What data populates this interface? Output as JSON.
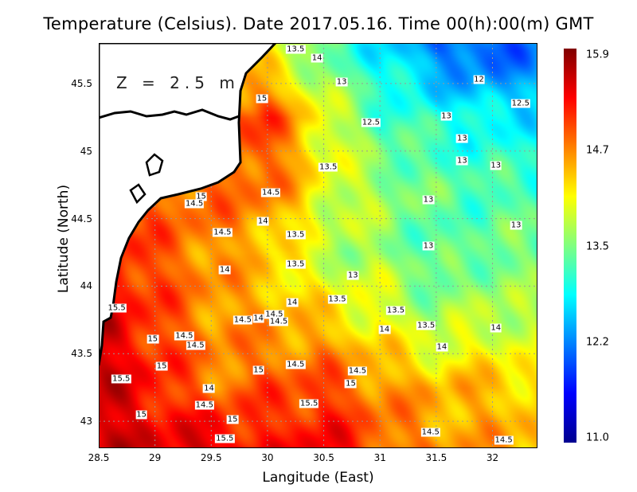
{
  "chart_data": {
    "type": "heatmap",
    "title": "Temperature (Celsius). Date 2017.05.16. Time 00(h):00(m)  GMT",
    "annotation": "Z = 2.5 m",
    "xlabel": "Langitude (East)",
    "ylabel": "Latitude (North)",
    "xlim": [
      28.5,
      32.4
    ],
    "ylim": [
      42.8,
      45.8
    ],
    "xticks": [
      "28.5",
      "29",
      "29.5",
      "30",
      "30.5",
      "31",
      "31.5",
      "32"
    ],
    "yticks": [
      "43",
      "43.5",
      "44",
      "44.5",
      "45",
      "45.5"
    ],
    "grid": true,
    "colorbar": {
      "min": 11.0,
      "max": 15.9,
      "labels": [
        "15.9",
        "14.7",
        "13.5",
        "12.2",
        "11.0"
      ],
      "colormap": "jet"
    },
    "grid_lon": [
      28.5,
      29.0,
      29.5,
      30.0,
      30.5,
      31.0,
      31.5,
      32.0,
      32.5
    ],
    "grid_lat": [
      45.75,
      45.25,
      44.75,
      44.25,
      43.75,
      43.25,
      42.75
    ],
    "values": [
      [
        null,
        null,
        null,
        14.0,
        13.3,
        12.8,
        12.2,
        12.0,
        12.3
      ],
      [
        null,
        null,
        null,
        15.0,
        14.0,
        13.2,
        13.0,
        12.8,
        12.8
      ],
      [
        null,
        null,
        14.8,
        14.8,
        14.0,
        13.6,
        13.3,
        13.2,
        13.2
      ],
      [
        15.3,
        14.9,
        14.6,
        14.3,
        13.7,
        13.6,
        13.2,
        13.4,
        13.4
      ],
      [
        15.5,
        15.0,
        14.6,
        14.5,
        14.3,
        14.0,
        13.6,
        13.8,
        13.6
      ],
      [
        15.5,
        15.2,
        14.7,
        14.9,
        15.0,
        14.6,
        14.4,
        14.4,
        14.2
      ],
      [
        15.6,
        15.4,
        15.6,
        15.2,
        15.4,
        14.9,
        14.6,
        14.5,
        14.5
      ]
    ],
    "contour_labels": [
      {
        "text": "13.5",
        "lon": 30.25,
        "lat": 45.75
      },
      {
        "text": "14",
        "lon": 30.44,
        "lat": 45.69
      },
      {
        "text": "13",
        "lon": 30.66,
        "lat": 45.51
      },
      {
        "text": "12",
        "lon": 31.88,
        "lat": 45.53
      },
      {
        "text": "12.5",
        "lon": 32.25,
        "lat": 45.35
      },
      {
        "text": "15",
        "lon": 29.95,
        "lat": 45.39
      },
      {
        "text": "12.5",
        "lon": 30.92,
        "lat": 45.21
      },
      {
        "text": "13",
        "lon": 31.59,
        "lat": 45.26
      },
      {
        "text": "13",
        "lon": 31.73,
        "lat": 45.09
      },
      {
        "text": "13",
        "lon": 31.73,
        "lat": 44.93
      },
      {
        "text": "13",
        "lon": 32.03,
        "lat": 44.89
      },
      {
        "text": "13.5",
        "lon": 30.54,
        "lat": 44.88
      },
      {
        "text": "14.5",
        "lon": 30.03,
        "lat": 44.69
      },
      {
        "text": "15",
        "lon": 29.41,
        "lat": 44.66
      },
      {
        "text": "14.5",
        "lon": 29.35,
        "lat": 44.61
      },
      {
        "text": "13",
        "lon": 31.43,
        "lat": 44.64
      },
      {
        "text": "13",
        "lon": 32.21,
        "lat": 44.45
      },
      {
        "text": "14",
        "lon": 29.96,
        "lat": 44.48
      },
      {
        "text": "14.5",
        "lon": 29.6,
        "lat": 44.4
      },
      {
        "text": "13.5",
        "lon": 30.25,
        "lat": 44.38
      },
      {
        "text": "13",
        "lon": 31.43,
        "lat": 44.3
      },
      {
        "text": "13.5",
        "lon": 30.25,
        "lat": 44.16
      },
      {
        "text": "14",
        "lon": 29.62,
        "lat": 44.12
      },
      {
        "text": "13",
        "lon": 30.76,
        "lat": 44.08
      },
      {
        "text": "14",
        "lon": 30.22,
        "lat": 43.88
      },
      {
        "text": "13.5",
        "lon": 30.62,
        "lat": 43.9
      },
      {
        "text": "13.5",
        "lon": 31.14,
        "lat": 43.82
      },
      {
        "text": "15.5",
        "lon": 28.66,
        "lat": 43.84
      },
      {
        "text": "14.5",
        "lon": 30.06,
        "lat": 43.79
      },
      {
        "text": "14",
        "lon": 29.92,
        "lat": 43.76
      },
      {
        "text": "14.5",
        "lon": 29.78,
        "lat": 43.75
      },
      {
        "text": "14.5",
        "lon": 30.1,
        "lat": 43.74
      },
      {
        "text": "14",
        "lon": 31.04,
        "lat": 43.68
      },
      {
        "text": "13.5",
        "lon": 31.41,
        "lat": 43.71
      },
      {
        "text": "14",
        "lon": 32.03,
        "lat": 43.69
      },
      {
        "text": "14.5",
        "lon": 29.26,
        "lat": 43.63
      },
      {
        "text": "15",
        "lon": 28.98,
        "lat": 43.61
      },
      {
        "text": "14.5",
        "lon": 29.36,
        "lat": 43.56
      },
      {
        "text": "14",
        "lon": 31.55,
        "lat": 43.55
      },
      {
        "text": "15",
        "lon": 29.06,
        "lat": 43.41
      },
      {
        "text": "14.5",
        "lon": 30.25,
        "lat": 43.42
      },
      {
        "text": "15",
        "lon": 29.92,
        "lat": 43.38
      },
      {
        "text": "14.5",
        "lon": 30.8,
        "lat": 43.37
      },
      {
        "text": "15.5",
        "lon": 28.7,
        "lat": 43.31
      },
      {
        "text": "15",
        "lon": 30.74,
        "lat": 43.28
      },
      {
        "text": "14",
        "lon": 29.48,
        "lat": 43.24
      },
      {
        "text": "15.5",
        "lon": 30.37,
        "lat": 43.13
      },
      {
        "text": "14.5",
        "lon": 29.44,
        "lat": 43.12
      },
      {
        "text": "15",
        "lon": 28.88,
        "lat": 43.05
      },
      {
        "text": "15",
        "lon": 29.69,
        "lat": 43.01
      },
      {
        "text": "14.5",
        "lon": 31.45,
        "lat": 42.92
      },
      {
        "text": "15.5",
        "lon": 29.62,
        "lat": 42.87
      },
      {
        "text": "14.5",
        "lon": 32.1,
        "lat": 42.86
      }
    ]
  }
}
